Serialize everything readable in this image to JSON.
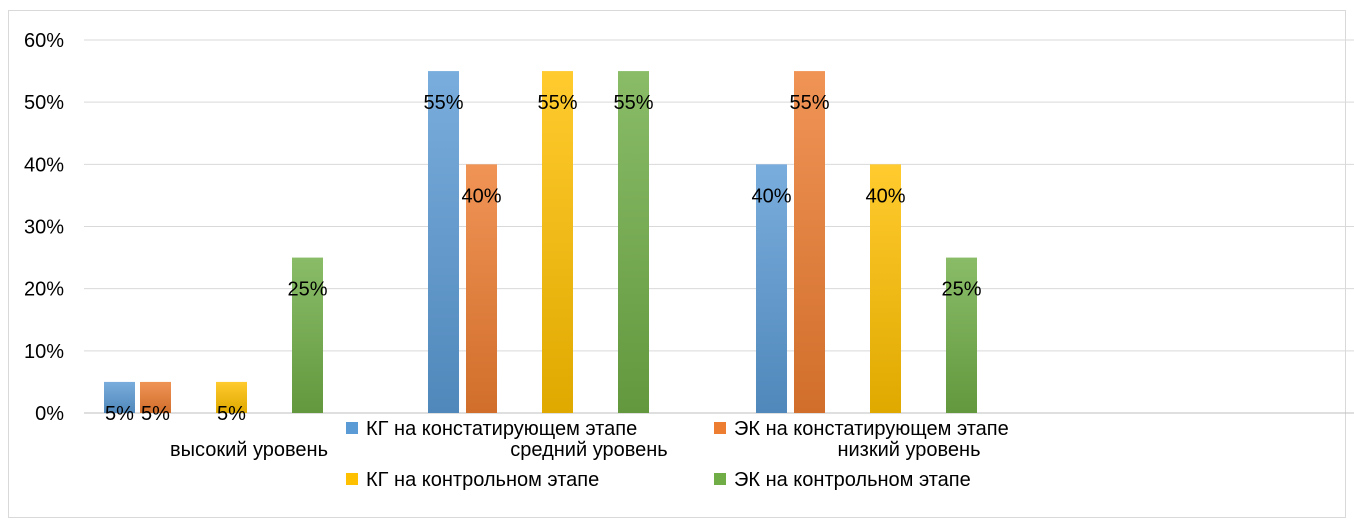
{
  "chart_data": {
    "type": "bar",
    "categories": [
      "высокий уровень",
      "средний уровень",
      "низкий уровень"
    ],
    "series": [
      {
        "name": "КГ на констатирующем этапе",
        "values": [
          5,
          55,
          40
        ],
        "color": "#5b9bd5"
      },
      {
        "name": "ЭК на констатирующем этапе",
        "values": [
          5,
          40,
          55
        ],
        "color": "#ed7d31"
      },
      {
        "name": "КГ на контрольном этапе",
        "values": [
          5,
          55,
          40
        ],
        "color": "#ffc000"
      },
      {
        "name": "ЭК на контрольном этапе",
        "values": [
          25,
          55,
          25
        ],
        "color": "#70ad47"
      }
    ],
    "y_ticks": [
      "0%",
      "10%",
      "20%",
      "30%",
      "40%",
      "50%",
      "60%"
    ],
    "data_labels": [
      [
        "5%",
        "55%",
        "40%"
      ],
      [
        "5%",
        "40%",
        "55%"
      ],
      [
        "5%",
        "55%",
        "40%"
      ],
      [
        "25%",
        "55%",
        "25%"
      ]
    ],
    "ylim": [
      0,
      60
    ],
    "grid": true,
    "legend_position": "bottom"
  }
}
